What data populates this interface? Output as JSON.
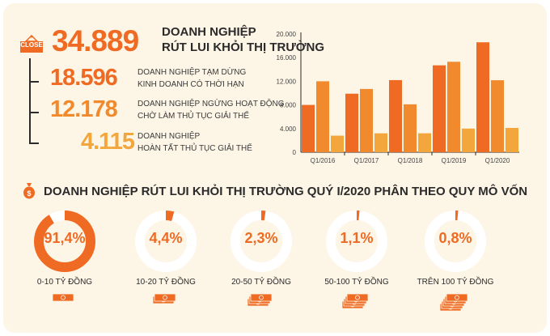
{
  "header": {
    "close_badge": "CLOSE",
    "total_number": "34.889",
    "total_label_line1": "DOANH NGHIỆP",
    "total_label_line2": "RÚT LUI KHỎI THỊ TRƯỜNG"
  },
  "breakdown": [
    {
      "number": "18.596",
      "line1": "DOANH NGHIỆP TẠM DỪNG",
      "line2": "KINH DOANH CÓ THỜI HẠN",
      "color": "#ef6a22"
    },
    {
      "number": "12.178",
      "line1": "DOANH NGHIỆP NGỪNG HOẠT ĐỘNG",
      "line2": "CHỜ LÀM THỦ TỤC GIẢI THỂ",
      "color": "#f08a2c"
    },
    {
      "number": "4.115",
      "line1": "DOANH NGHIỆP",
      "line2": "HOÀN TẤT THỦ TỤC GIẢI THỂ",
      "color": "#f3a63c"
    }
  ],
  "section_title": "DOANH NGHIỆP RÚT LUI KHỎI THỊ TRƯỜNG QUÝ I/2020 PHÂN THEO QUY MÔ VỐN",
  "capital_groups": [
    {
      "pct": "91,4%",
      "value": 91.4,
      "label": "0-10 TỶ ĐỒNG"
    },
    {
      "pct": "4,4%",
      "value": 4.4,
      "label": "10-20 TỶ ĐỒNG"
    },
    {
      "pct": "2,3%",
      "value": 2.3,
      "label": "20-50 TỶ ĐỒNG"
    },
    {
      "pct": "1,1%",
      "value": 1.1,
      "label": "50-100 TỶ ĐỒNG"
    },
    {
      "pct": "0,8%",
      "value": 0.8,
      "label": "TRÊN 100 TỶ ĐỒNG"
    }
  ],
  "colors": {
    "accent": "#ef6a22",
    "series1": "#ef6a22",
    "series2": "#f08a2c",
    "series3": "#f3a63c",
    "donut_track": "#ffffff"
  },
  "chart_data": {
    "type": "bar",
    "categories": [
      "Q1/2016",
      "Q1/2017",
      "Q1/2018",
      "Q1/2019",
      "Q1/2020"
    ],
    "tick_labels": [
      "Q1/2016",
      "Q1/2017",
      "Q1/2018",
      "Q1/2019",
      "Q1/2020"
    ],
    "series": [
      {
        "values": [
          8000,
          9900,
          12200,
          14700,
          18596
        ]
      },
      {
        "values": [
          12000,
          10700,
          8100,
          15300,
          12178
        ]
      },
      {
        "values": [
          2800,
          3200,
          3200,
          4000,
          4115
        ]
      }
    ],
    "yticks": [
      "20.000",
      "16.000",
      "12.000",
      "8.000",
      "4.000",
      "0"
    ],
    "ylim": [
      0,
      20000
    ],
    "grid": false,
    "legend": "none"
  }
}
